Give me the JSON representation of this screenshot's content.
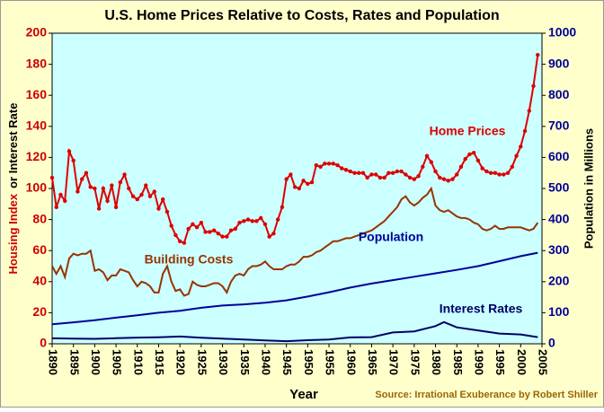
{
  "chart_data": {
    "type": "line",
    "title": "U.S. Home Prices Relative to Costs, Rates and Population",
    "y_label": [
      "Housing Index",
      "or Interest Rate"
    ],
    "y2_label": "Population in Millions",
    "x_label": "Year",
    "source": "Source: Irrational Exuberance by Robert Shiller",
    "x": [
      1890,
      1891,
      1892,
      1893,
      1894,
      1895,
      1896,
      1897,
      1898,
      1899,
      1900,
      1901,
      1902,
      1903,
      1904,
      1905,
      1906,
      1907,
      1908,
      1909,
      1910,
      1911,
      1912,
      1913,
      1914,
      1915,
      1916,
      1917,
      1918,
      1919,
      1920,
      1921,
      1922,
      1923,
      1924,
      1925,
      1926,
      1927,
      1928,
      1929,
      1930,
      1931,
      1932,
      1933,
      1934,
      1935,
      1936,
      1937,
      1938,
      1939,
      1940,
      1941,
      1942,
      1943,
      1944,
      1945,
      1946,
      1947,
      1948,
      1949,
      1950,
      1951,
      1952,
      1953,
      1954,
      1955,
      1956,
      1957,
      1958,
      1959,
      1960,
      1961,
      1962,
      1963,
      1964,
      1965,
      1966,
      1967,
      1968,
      1969,
      1970,
      1971,
      1972,
      1973,
      1974,
      1975,
      1976,
      1977,
      1978,
      1979,
      1980,
      1981,
      1982,
      1983,
      1984,
      1985,
      1986,
      1987,
      1988,
      1989,
      1990,
      1991,
      1992,
      1993,
      1994,
      1995,
      1996,
      1997,
      1998,
      1999,
      2000,
      2001,
      2002,
      2003,
      2004
    ],
    "series": [
      {
        "name": "Home Prices",
        "color": "#dd0000",
        "markers": true,
        "values": [
          107,
          88,
          96,
          92,
          124,
          118,
          98,
          106,
          110,
          101,
          100,
          87,
          100,
          92,
          102,
          88,
          104,
          109,
          100,
          95,
          93,
          96,
          102,
          95,
          98,
          87,
          93,
          85,
          76,
          70,
          66,
          65,
          74,
          77,
          75,
          78,
          72,
          72,
          73,
          71,
          69,
          69,
          73,
          74,
          78,
          79,
          80,
          79,
          79,
          81,
          77,
          69,
          71,
          80,
          88,
          106,
          109,
          101,
          100,
          105,
          103,
          104,
          115,
          114,
          116,
          116,
          116,
          115,
          113,
          112,
          111,
          110,
          110,
          110,
          107,
          109,
          109,
          107,
          107,
          110,
          110,
          111,
          111,
          109,
          107,
          106,
          108,
          114,
          121,
          117,
          111,
          107,
          106,
          105,
          106,
          109,
          114,
          119,
          122,
          123,
          118,
          113,
          111,
          110,
          110,
          109,
          109,
          110,
          114,
          121,
          127,
          137,
          150,
          166,
          186
        ]
      },
      {
        "name": "Building Costs",
        "color": "#993300",
        "values": [
          50,
          45,
          50,
          43,
          55,
          58,
          57,
          58,
          58,
          60,
          47,
          48,
          46,
          41,
          44,
          44,
          48,
          47,
          46,
          41,
          37,
          40,
          39,
          37,
          33,
          33,
          45,
          50,
          40,
          34,
          35,
          31,
          32,
          40,
          38,
          37,
          37,
          38,
          39,
          39,
          37,
          33,
          40,
          44,
          45,
          44,
          48,
          50,
          50,
          51,
          53,
          50,
          48,
          48,
          48,
          50,
          51,
          51,
          53,
          56,
          56,
          57,
          59,
          60,
          62,
          64,
          66,
          66,
          67,
          68,
          68,
          69,
          70,
          71,
          72,
          73,
          75,
          77,
          79,
          82,
          85,
          88,
          93,
          95,
          91,
          89,
          91,
          94,
          96,
          100,
          89,
          86,
          85,
          86,
          84,
          82,
          81,
          81,
          80,
          78,
          77,
          74,
          73,
          74,
          76,
          74,
          74,
          75,
          75,
          75,
          75,
          74,
          73,
          74,
          78
        ]
      },
      {
        "name": "Population",
        "color": "#000099",
        "axis": "y2",
        "x": [
          1890,
          1895,
          1900,
          1905,
          1910,
          1915,
          1920,
          1925,
          1930,
          1935,
          1940,
          1945,
          1950,
          1955,
          1960,
          1965,
          1970,
          1975,
          1980,
          1985,
          1990,
          1995,
          2000,
          2004
        ],
        "values": [
          63,
          69,
          76,
          84,
          92,
          100,
          106,
          116,
          123,
          127,
          132,
          140,
          152,
          166,
          181,
          194,
          205,
          216,
          227,
          238,
          250,
          266,
          282,
          293
        ]
      },
      {
        "name": "Interest Rates",
        "color": "#000066",
        "x": [
          1890,
          1895,
          1900,
          1905,
          1910,
          1915,
          1920,
          1925,
          1930,
          1935,
          1940,
          1945,
          1950,
          1955,
          1960,
          1965,
          1970,
          1975,
          1980,
          1982,
          1985,
          1990,
          1995,
          2000,
          2004
        ],
        "values": [
          3.5,
          3.3,
          3.2,
          3.6,
          4.0,
          4.2,
          4.7,
          3.9,
          3.3,
          2.8,
          2.2,
          1.7,
          2.3,
          2.8,
          4.1,
          4.3,
          7.3,
          8.0,
          11.4,
          14,
          10.6,
          8.6,
          6.6,
          6.0,
          4.3
        ]
      }
    ],
    "xlim": [
      1890,
      2005
    ],
    "xticks": [
      1890,
      1895,
      1900,
      1905,
      1910,
      1915,
      1920,
      1925,
      1930,
      1935,
      1940,
      1945,
      1950,
      1955,
      1960,
      1965,
      1970,
      1975,
      1980,
      1985,
      1990,
      1995,
      2000,
      2005
    ],
    "ylim": [
      0,
      200
    ],
    "yticks": [
      0,
      20,
      40,
      60,
      80,
      100,
      120,
      140,
      160,
      180,
      200
    ],
    "y2lim": [
      0,
      1000
    ],
    "y2ticks": [
      0,
      100,
      200,
      300,
      400,
      500,
      600,
      700,
      800,
      900,
      1000
    ],
    "grid": false
  }
}
